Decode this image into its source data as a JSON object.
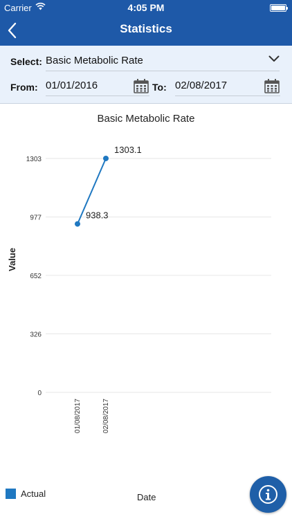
{
  "status_bar": {
    "carrier": "Carrier",
    "time": "4:05 PM"
  },
  "nav": {
    "title": "Statistics"
  },
  "filters": {
    "select_label": "Select:",
    "select_value": "Basic Metabolic Rate",
    "from_label": "From:",
    "from_value": "01/01/2016",
    "to_label": "To:",
    "to_value": "02/08/2017"
  },
  "chart_data": {
    "type": "line",
    "title": "Basic Metabolic Rate",
    "xlabel": "Date",
    "ylabel": "Value",
    "ylim": [
      0,
      1303
    ],
    "yticks": [
      0,
      326,
      652,
      977,
      1303
    ],
    "categories": [
      "01/08/2017",
      "02/08/2017"
    ],
    "series": [
      {
        "name": "Actual",
        "values": [
          938.3,
          1303.1
        ],
        "color": "#1f78c1"
      }
    ],
    "legend": "bottom-left",
    "grid": true
  }
}
